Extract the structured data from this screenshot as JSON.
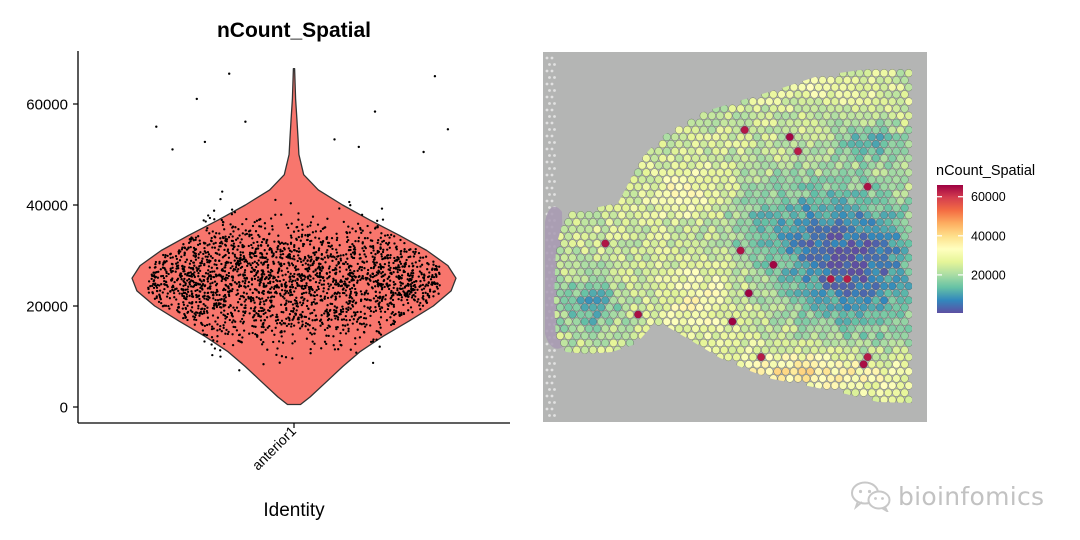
{
  "chart_data": [
    {
      "type": "violin",
      "title": "nCount_Spatial",
      "xlabel": "Identity",
      "ylabel": "",
      "categories": [
        "anterior1"
      ],
      "ylim": [
        -1500,
        70000
      ],
      "yticks": [
        0,
        20000,
        40000,
        60000
      ],
      "ytick_labels": [
        "0",
        "20000",
        "40000",
        "60000"
      ],
      "fill_color": "#f8766d",
      "outline_color": "#333333",
      "point_color": "#000000",
      "grid": false,
      "violin_profile": [
        {
          "y": 500,
          "width": 0.04
        },
        {
          "y": 2000,
          "width": 0.1
        },
        {
          "y": 5000,
          "width": 0.2
        },
        {
          "y": 8000,
          "width": 0.3
        },
        {
          "y": 11000,
          "width": 0.41
        },
        {
          "y": 14000,
          "width": 0.55
        },
        {
          "y": 17000,
          "width": 0.71
        },
        {
          "y": 20000,
          "width": 0.86
        },
        {
          "y": 23000,
          "width": 0.97
        },
        {
          "y": 25500,
          "width": 1.0
        },
        {
          "y": 28000,
          "width": 0.95
        },
        {
          "y": 31000,
          "width": 0.82
        },
        {
          "y": 34000,
          "width": 0.65
        },
        {
          "y": 37000,
          "width": 0.47
        },
        {
          "y": 40000,
          "width": 0.3
        },
        {
          "y": 43000,
          "width": 0.15
        },
        {
          "y": 46000,
          "width": 0.06
        },
        {
          "y": 50000,
          "width": 0.03
        },
        {
          "y": 53000,
          "width": 0.025
        },
        {
          "y": 57000,
          "width": 0.018
        },
        {
          "y": 61000,
          "width": 0.01
        },
        {
          "y": 64000,
          "width": 0.007
        },
        {
          "y": 67000,
          "width": 0.004
        }
      ],
      "outliers": [
        {
          "x": -0.6,
          "y": 61000
        },
        {
          "x": -0.4,
          "y": 66000
        },
        {
          "x": 0.5,
          "y": 58500
        },
        {
          "x": 0.87,
          "y": 65500
        },
        {
          "x": -0.85,
          "y": 55500
        },
        {
          "x": 0.95,
          "y": 55000
        },
        {
          "x": -0.3,
          "y": 56500
        },
        {
          "x": 0.25,
          "y": 53000
        },
        {
          "x": -0.55,
          "y": 52500
        },
        {
          "x": 0.4,
          "y": 51500
        },
        {
          "x": -0.75,
          "y": 51000
        },
        {
          "x": 0.8,
          "y": 50500
        }
      ]
    },
    {
      "type": "heatmap",
      "title": "",
      "legend_title": "nCount_Spatial",
      "color_scale": [
        "#5e4fa2",
        "#3288bd",
        "#66c2a5",
        "#abdda4",
        "#e6f598",
        "#ffffbf",
        "#fee08b",
        "#fdae61",
        "#f46d43",
        "#d53e4f",
        "#9e0142"
      ],
      "value_range": [
        500,
        66000
      ],
      "colorbar_ticks": [
        20000,
        40000,
        60000
      ],
      "colorbar_tick_labels": [
        "20000",
        "40000",
        "60000"
      ],
      "background_color": "#b4b5b4",
      "tissue_stain_color": "#a89ab3"
    }
  ],
  "watermark": {
    "text": "bioinfomics",
    "icon": "wechat-icon"
  }
}
